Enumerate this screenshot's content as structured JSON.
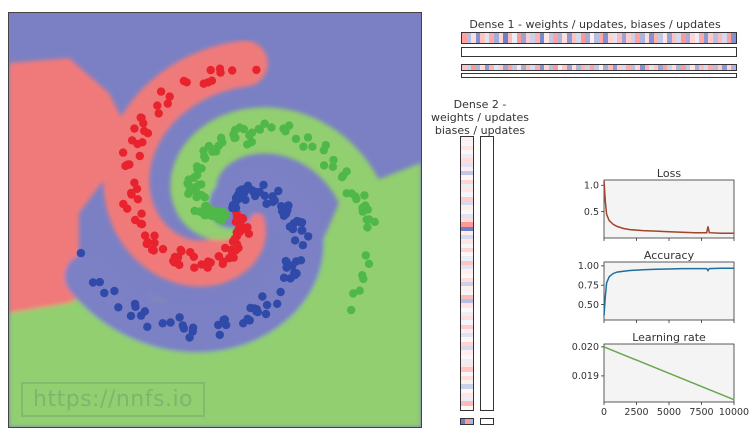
{
  "watermark": "https://nnfs.io",
  "decision_plot": {
    "class_colors": {
      "red": "#f07a7a",
      "blue": "#7b80c4",
      "green": "#92cf6f"
    },
    "point_colors": {
      "red": "#e8232e",
      "blue": "#2f4aa8",
      "green": "#4fb848"
    }
  },
  "dense1": {
    "title": "Dense 1 - weights / updates, biases / updates",
    "weights_row": [
      0.55,
      -0.35,
      0.2,
      -0.6,
      0.35,
      -0.15,
      0.5,
      -0.45,
      0.25,
      -0.7,
      0.4,
      -0.1,
      0.6,
      -0.5,
      0.3,
      -0.25,
      0.45,
      -0.65,
      0.15,
      -0.3,
      0.55,
      -0.4,
      0.2,
      -0.55,
      0.35,
      -0.2,
      0.6,
      -0.45,
      0.1,
      -0.35,
      0.5,
      -0.6,
      0.25,
      -0.15,
      0.4,
      -0.5,
      0.3,
      -0.25,
      0.55,
      -0.4,
      0.2,
      -0.6,
      0.45,
      -0.3,
      0.15,
      -0.5,
      0.35,
      -0.2,
      0.6,
      -0.45,
      0.25,
      -0.1,
      0.5,
      -0.55,
      0.3,
      -0.35,
      0.4,
      -0.2,
      0.55,
      -0.6
    ],
    "biases_row": [
      0.35,
      -0.25,
      0.6,
      -0.4,
      0.2,
      -0.55,
      0.45,
      -0.15,
      0.3,
      -0.5,
      0.55,
      -0.3,
      0.15,
      -0.45,
      0.4,
      -0.2,
      0.5,
      -0.6,
      0.25,
      -0.35,
      0.6,
      -0.1,
      0.35,
      -0.5,
      0.2,
      -0.4,
      0.45,
      -0.25,
      0.55,
      -0.3,
      0.1,
      -0.45,
      0.4,
      -0.55,
      0.3,
      -0.2,
      0.5,
      -0.35,
      0.25,
      -0.6,
      0.45,
      -0.15,
      0.35,
      -0.5,
      0.55,
      -0.25,
      0.2,
      -0.4,
      0.6,
      -0.3,
      0.15,
      -0.45,
      0.4,
      -0.2,
      0.5,
      -0.35,
      0.3,
      -0.55,
      0.25,
      -0.4
    ]
  },
  "dense2": {
    "title_lines": [
      "Dense 2 -",
      "weights / updates",
      "biases / updates"
    ],
    "weights_col": [
      0.1,
      -0.05,
      0.15,
      0.05,
      -0.1,
      0.2,
      -0.15,
      0.1,
      -0.3,
      0.05,
      0.25,
      -0.1,
      0.15,
      -0.05,
      0.3,
      -0.2,
      0.1,
      0.05,
      -0.15,
      0.2,
      0.6,
      -0.7,
      0.1,
      -0.2,
      0.15,
      -0.05,
      0.25,
      0.05,
      -0.1,
      0.35,
      -0.15,
      0.1,
      0.05,
      0.2,
      -0.25,
      0.1,
      -0.05,
      0.4,
      -0.35,
      0.15,
      0.05,
      -0.1,
      0.2,
      -0.05,
      0.3,
      0.1,
      -0.15,
      0.05,
      0.25,
      -0.2,
      0.1,
      0.05,
      -0.1,
      0.15,
      0.35,
      -0.05,
      0.2,
      0.1,
      -0.25,
      0.05,
      0.15,
      -0.1,
      0.4,
      0.05
    ],
    "bias_cells": [
      -0.7,
      0.6,
      -0.4
    ]
  },
  "chart_data": [
    {
      "type": "line",
      "title": "Loss",
      "xlim": [
        0,
        10000
      ],
      "ylim": [
        0,
        1.1
      ],
      "yticks": [
        0.5,
        1.0
      ],
      "ytick_labels": [
        "0.5",
        "1.0"
      ],
      "color": "#a0452c",
      "x": [
        0,
        100,
        200,
        400,
        700,
        1000,
        1500,
        2000,
        3000,
        4000,
        5000,
        6000,
        7000,
        7900,
        8000,
        8100,
        9000,
        10000
      ],
      "y": [
        1.08,
        0.7,
        0.45,
        0.33,
        0.26,
        0.22,
        0.18,
        0.16,
        0.14,
        0.13,
        0.12,
        0.11,
        0.1,
        0.1,
        0.22,
        0.1,
        0.09,
        0.09
      ]
    },
    {
      "type": "line",
      "title": "Accuracy",
      "xlim": [
        0,
        10000
      ],
      "ylim": [
        0.3,
        1.05
      ],
      "yticks": [
        0.5,
        0.75,
        1.0
      ],
      "ytick_labels": [
        "0.50",
        "0.75",
        "1.00"
      ],
      "color": "#1f6f9a",
      "x": [
        0,
        100,
        200,
        400,
        700,
        1000,
        1500,
        2000,
        3000,
        4000,
        5000,
        6000,
        7000,
        7900,
        8000,
        8100,
        9000,
        10000
      ],
      "y": [
        0.36,
        0.6,
        0.78,
        0.86,
        0.9,
        0.92,
        0.93,
        0.94,
        0.95,
        0.955,
        0.96,
        0.965,
        0.965,
        0.965,
        0.94,
        0.965,
        0.97,
        0.97
      ]
    },
    {
      "type": "line",
      "title": "Learning rate",
      "xlim": [
        0,
        10000
      ],
      "ylim": [
        0.0181,
        0.0201
      ],
      "yticks": [
        0.019,
        0.02
      ],
      "ytick_labels": [
        "0.019",
        "0.020"
      ],
      "xticks": [
        0,
        2500,
        5000,
        7500,
        10000
      ],
      "xtick_labels": [
        "0",
        "2500",
        "5000",
        "7500",
        "10000"
      ],
      "color": "#6aa84f",
      "x": [
        0,
        10000
      ],
      "y": [
        0.02,
        0.01818
      ]
    }
  ]
}
